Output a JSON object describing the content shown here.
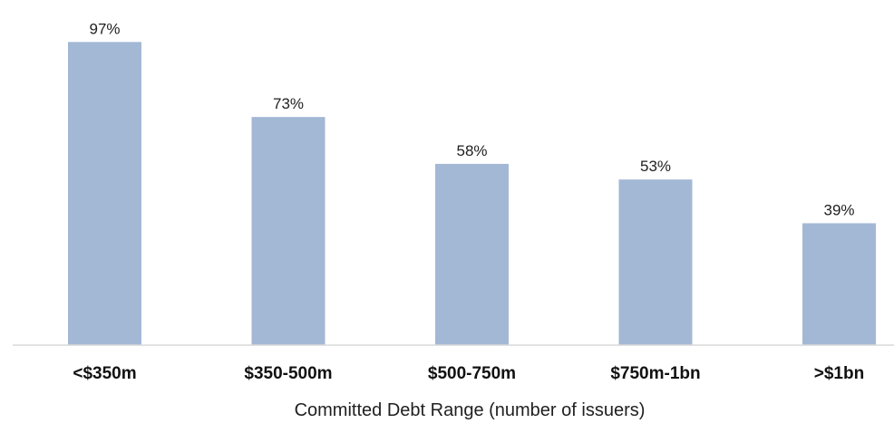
{
  "chart_data": {
    "type": "bar",
    "categories": [
      "<$350m",
      "$350-500m",
      "$500-750m",
      "$750m-1bn",
      ">$1bn"
    ],
    "values": [
      97,
      73,
      58,
      53,
      39
    ],
    "value_labels": [
      "97%",
      "73%",
      "58%",
      "53%",
      "39%"
    ],
    "xlabel": "Committed Debt Range (number of issuers)",
    "ylabel": "",
    "ylim": [
      0,
      100
    ],
    "grid": false,
    "legend": "none",
    "bar_color": "#a3b8d5",
    "axis_color": "#d9d9d9"
  }
}
